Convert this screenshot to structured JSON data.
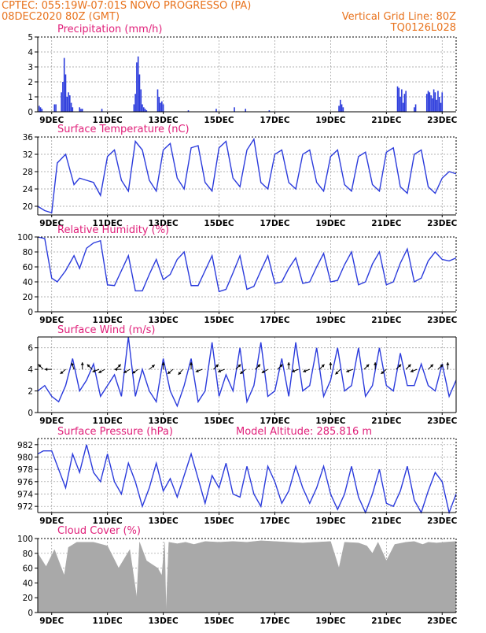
{
  "header": {
    "left_line1": "CPTEC:   055:19W-07:01S   NOVO PROGRESSO (PA)",
    "left_line2": "08DEC2020 80Z (GMT)",
    "right_line1": "Vertical Grid Line: 80Z",
    "right_line2": "TQ0126L028"
  },
  "x_axis": {
    "range": [
      0,
      15
    ],
    "ticks": [
      {
        "label": "9DEC",
        "x": 0.5
      },
      {
        "label": "11DEC",
        "x": 2.5
      },
      {
        "label": "13DEC",
        "x": 4.5
      },
      {
        "label": "15DEC",
        "x": 6.5
      },
      {
        "label": "17DEC",
        "x": 8.5
      },
      {
        "label": "19DEC",
        "x": 10.5
      },
      {
        "label": "21DEC",
        "x": 12.5
      },
      {
        "label": "23DEC",
        "x": 14.5
      }
    ]
  },
  "chart_data": [
    {
      "type": "bar",
      "title": "Precipitation (mm/h)",
      "ylim": [
        0,
        5
      ],
      "yticks": [
        0,
        1,
        2,
        3,
        4,
        5
      ],
      "x": [
        0.05,
        0.1,
        0.15,
        0.6,
        0.65,
        0.85,
        0.9,
        0.95,
        1.0,
        1.05,
        1.1,
        1.15,
        1.2,
        1.25,
        1.5,
        1.55,
        1.6,
        2.3,
        3.45,
        3.5,
        3.55,
        3.6,
        3.65,
        3.7,
        3.75,
        3.8,
        3.85,
        3.9,
        4.3,
        4.35,
        4.4,
        4.45,
        4.5,
        5.4,
        6.4,
        7.05,
        7.45,
        8.3,
        10.8,
        10.85,
        10.9,
        10.95,
        12.9,
        12.95,
        13.0,
        13.05,
        13.1,
        13.15,
        13.2,
        13.5,
        13.55,
        13.95,
        14.0,
        14.05,
        14.1,
        14.15,
        14.2,
        14.25,
        14.3,
        14.35,
        14.4,
        14.45,
        14.5
      ],
      "values": [
        0.4,
        0.3,
        0.2,
        0.5,
        0.5,
        1.3,
        2.0,
        3.6,
        2.5,
        1.0,
        1.3,
        1.1,
        0.6,
        0.3,
        0.3,
        0.2,
        0.2,
        0.2,
        0.5,
        1.2,
        3.3,
        3.7,
        2.5,
        1.5,
        0.5,
        0.3,
        0.2,
        0.1,
        1.5,
        1.0,
        0.6,
        0.7,
        0.5,
        0.1,
        0.2,
        0.3,
        0.2,
        0.1,
        0.4,
        0.8,
        0.5,
        0.3,
        1.7,
        1.6,
        1.0,
        1.5,
        0.6,
        1.2,
        1.4,
        0.3,
        0.5,
        1.2,
        1.4,
        1.3,
        1.1,
        0.9,
        1.5,
        1.3,
        0.8,
        1.4,
        1.0,
        0.6,
        1.3
      ]
    },
    {
      "type": "line",
      "title": "Surface Temperature (nC)",
      "ylim": [
        18,
        36
      ],
      "yticks": [
        20,
        24,
        28,
        32,
        36
      ],
      "x": [
        0,
        0.25,
        0.5,
        0.7,
        1.0,
        1.3,
        1.5,
        1.75,
        2.0,
        2.25,
        2.5,
        2.75,
        3.0,
        3.25,
        3.5,
        3.75,
        4.0,
        4.25,
        4.5,
        4.75,
        5.0,
        5.25,
        5.5,
        5.75,
        6.0,
        6.25,
        6.5,
        6.75,
        7.0,
        7.25,
        7.5,
        7.75,
        8.0,
        8.25,
        8.5,
        8.75,
        9.0,
        9.25,
        9.5,
        9.75,
        10.0,
        10.25,
        10.5,
        10.75,
        11.0,
        11.25,
        11.5,
        11.75,
        12.0,
        12.25,
        12.5,
        12.75,
        13.0,
        13.25,
        13.5,
        13.75,
        14.0,
        14.25,
        14.5,
        14.75,
        15.0
      ],
      "values": [
        20.0,
        19.0,
        18.5,
        30.0,
        32.0,
        25.0,
        26.5,
        26.0,
        25.5,
        22.5,
        31.5,
        33.0,
        26.0,
        23.5,
        35.0,
        33.0,
        26.0,
        23.5,
        33.0,
        34.5,
        26.5,
        24.0,
        33.5,
        34.0,
        25.5,
        23.5,
        33.5,
        35.0,
        26.5,
        24.5,
        33.0,
        35.5,
        25.5,
        24.0,
        32.0,
        33.0,
        25.5,
        24.0,
        32.0,
        33.0,
        25.5,
        23.5,
        31.5,
        33.0,
        25.0,
        23.5,
        31.5,
        32.5,
        25.0,
        23.5,
        32.5,
        33.5,
        24.5,
        23.0,
        32.0,
        33.0,
        24.5,
        23.0,
        26.5,
        28.0,
        27.5
      ]
    },
    {
      "type": "line",
      "title": "Relative Humidity (%)",
      "ylim": [
        0,
        100
      ],
      "yticks": [
        0,
        20,
        40,
        60,
        80,
        100
      ],
      "x": [
        0,
        0.25,
        0.5,
        0.7,
        1.0,
        1.3,
        1.5,
        1.75,
        2.0,
        2.25,
        2.5,
        2.75,
        3.0,
        3.25,
        3.5,
        3.75,
        4.0,
        4.25,
        4.5,
        4.75,
        5.0,
        5.25,
        5.5,
        5.75,
        6.0,
        6.25,
        6.5,
        6.75,
        7.0,
        7.25,
        7.5,
        7.75,
        8.0,
        8.25,
        8.5,
        8.75,
        9.0,
        9.25,
        9.5,
        9.75,
        10.0,
        10.25,
        10.5,
        10.75,
        11.0,
        11.25,
        11.5,
        11.75,
        12.0,
        12.25,
        12.5,
        12.75,
        13.0,
        13.25,
        13.5,
        13.75,
        14.0,
        14.25,
        14.5,
        14.75,
        15.0
      ],
      "values": [
        100,
        98,
        45,
        40,
        55,
        75,
        58,
        85,
        92,
        95,
        36,
        35,
        55,
        75,
        28,
        28,
        50,
        70,
        43,
        50,
        70,
        80,
        35,
        35,
        55,
        75,
        27,
        30,
        52,
        75,
        30,
        34,
        55,
        75,
        38,
        40,
        58,
        72,
        38,
        40,
        60,
        78,
        40,
        42,
        63,
        80,
        36,
        40,
        64,
        80,
        36,
        40,
        65,
        84,
        40,
        45,
        68,
        80,
        70,
        68,
        72
      ]
    },
    {
      "type": "line",
      "title": "Surface Wind (m/s)",
      "ylim": [
        0,
        7
      ],
      "yticks": [
        0,
        2,
        4,
        6
      ],
      "x": [
        0,
        0.25,
        0.5,
        0.75,
        1.0,
        1.25,
        1.5,
        1.75,
        2.0,
        2.25,
        2.5,
        2.75,
        3.0,
        3.25,
        3.5,
        3.75,
        4.0,
        4.25,
        4.5,
        4.75,
        5.0,
        5.25,
        5.5,
        5.75,
        6.0,
        6.25,
        6.5,
        6.75,
        7.0,
        7.25,
        7.5,
        7.75,
        8.0,
        8.25,
        8.5,
        8.75,
        9.0,
        9.25,
        9.5,
        9.75,
        10.0,
        10.25,
        10.5,
        10.75,
        11.0,
        11.25,
        11.5,
        11.75,
        12.0,
        12.25,
        12.5,
        12.75,
        13.0,
        13.25,
        13.5,
        13.75,
        14.0,
        14.25,
        14.5,
        14.75,
        15.0
      ],
      "values": [
        2.0,
        2.5,
        1.5,
        1.0,
        2.5,
        5.0,
        2.0,
        3.0,
        4.5,
        1.5,
        2.5,
        3.5,
        1.5,
        7.0,
        1.5,
        4.0,
        2.0,
        1.0,
        5.0,
        2.0,
        0.6,
        2.5,
        5.0,
        1.0,
        2.0,
        6.5,
        1.5,
        3.5,
        2.0,
        6.0,
        1.0,
        2.5,
        6.5,
        1.5,
        2.0,
        5.0,
        1.5,
        6.5,
        2.0,
        2.5,
        6.0,
        1.5,
        3.0,
        6.0,
        2.0,
        2.5,
        6.0,
        1.5,
        2.5,
        6.0,
        2.5,
        2.0,
        5.5,
        2.5,
        2.5,
        4.5,
        2.5,
        2.0,
        4.5,
        1.5,
        3.0
      ],
      "arrows_x": [
        0.2,
        0.5,
        1.0,
        1.3,
        1.6,
        1.95,
        2.2,
        2.4,
        2.8,
        3.0,
        3.3,
        3.6,
        4.0,
        4.5,
        4.85,
        5.2,
        5.5,
        5.9,
        6.3,
        6.7,
        7.1,
        7.45,
        7.8,
        8.25,
        8.6,
        9.0,
        9.35,
        9.75,
        10.1,
        10.5,
        10.85,
        11.3,
        11.7,
        12.1,
        12.5,
        12.85,
        13.2,
        13.6,
        14.0,
        14.35,
        14.7
      ],
      "arrows_dir_deg": [
        135,
        180,
        220,
        110,
        90,
        135,
        200,
        210,
        45,
        180,
        210,
        215,
        40,
        90,
        220,
        230,
        90,
        200,
        45,
        200,
        45,
        220,
        45,
        210,
        45,
        90,
        200,
        200,
        45,
        90,
        225,
        200,
        45,
        90,
        220,
        45,
        45,
        200,
        45,
        45,
        90
      ]
    },
    {
      "type": "line",
      "title": "Surface Pressure (hPa)",
      "annotation": "Model Altitude: 285.816 m",
      "ylim": [
        971,
        983
      ],
      "yticks": [
        972,
        974,
        976,
        978,
        980,
        982
      ],
      "x": [
        0,
        0.2,
        0.5,
        0.75,
        1.0,
        1.25,
        1.5,
        1.75,
        2.0,
        2.25,
        2.5,
        2.75,
        3.0,
        3.25,
        3.5,
        3.75,
        4.0,
        4.25,
        4.5,
        4.75,
        5.0,
        5.25,
        5.5,
        5.75,
        6.0,
        6.25,
        6.5,
        6.75,
        7.0,
        7.25,
        7.5,
        7.75,
        8.0,
        8.25,
        8.5,
        8.75,
        9.0,
        9.25,
        9.5,
        9.75,
        10.0,
        10.25,
        10.5,
        10.75,
        11.0,
        11.25,
        11.5,
        11.75,
        12.0,
        12.25,
        12.5,
        12.75,
        13.0,
        13.25,
        13.5,
        13.75,
        14.0,
        14.25,
        14.5,
        14.75,
        15.0
      ],
      "values": [
        980.5,
        981.0,
        981.0,
        978.0,
        975.0,
        980.5,
        977.5,
        982.0,
        977.5,
        976.0,
        980.5,
        976.0,
        974.0,
        979.0,
        976.0,
        972.0,
        975.0,
        979.0,
        974.5,
        976.5,
        973.5,
        977.0,
        980.5,
        976.5,
        972.5,
        977.0,
        975.0,
        979.0,
        974.0,
        973.5,
        978.5,
        974.0,
        972.0,
        978.5,
        976.0,
        972.5,
        974.5,
        978.5,
        975.0,
        972.5,
        975.0,
        978.5,
        974.0,
        971.5,
        974.0,
        978.5,
        973.5,
        971.0,
        974.0,
        978.0,
        972.5,
        972.0,
        974.5,
        978.5,
        973.0,
        971.0,
        974.5,
        977.5,
        976.0,
        971.0,
        974.0
      ]
    },
    {
      "type": "area",
      "title": "Cloud Cover (%)",
      "ylim": [
        0,
        100
      ],
      "yticks": [
        0,
        20,
        40,
        60,
        80,
        100
      ],
      "x": [
        0,
        0.3,
        0.6,
        0.95,
        1.1,
        1.4,
        2.0,
        2.5,
        2.9,
        3.3,
        3.55,
        3.65,
        3.9,
        4.3,
        4.45,
        4.55,
        4.6,
        4.7,
        5.0,
        5.3,
        5.6,
        6.0,
        6.5,
        7.0,
        7.5,
        8.0,
        8.5,
        9.0,
        9.5,
        10.0,
        10.5,
        10.8,
        11.0,
        11.5,
        11.8,
        12.0,
        12.2,
        12.5,
        12.8,
        13.2,
        13.5,
        13.8,
        14.0,
        14.3,
        14.6,
        15.0
      ],
      "values": [
        80,
        62,
        85,
        50,
        88,
        95,
        95,
        90,
        60,
        85,
        20,
        95,
        70,
        60,
        50,
        95,
        0,
        95,
        93,
        95,
        92,
        96,
        95,
        96,
        95,
        97,
        96,
        95,
        94,
        95,
        96,
        60,
        95,
        94,
        90,
        80,
        95,
        70,
        92,
        95,
        96,
        92,
        95,
        94,
        95,
        96
      ]
    }
  ]
}
